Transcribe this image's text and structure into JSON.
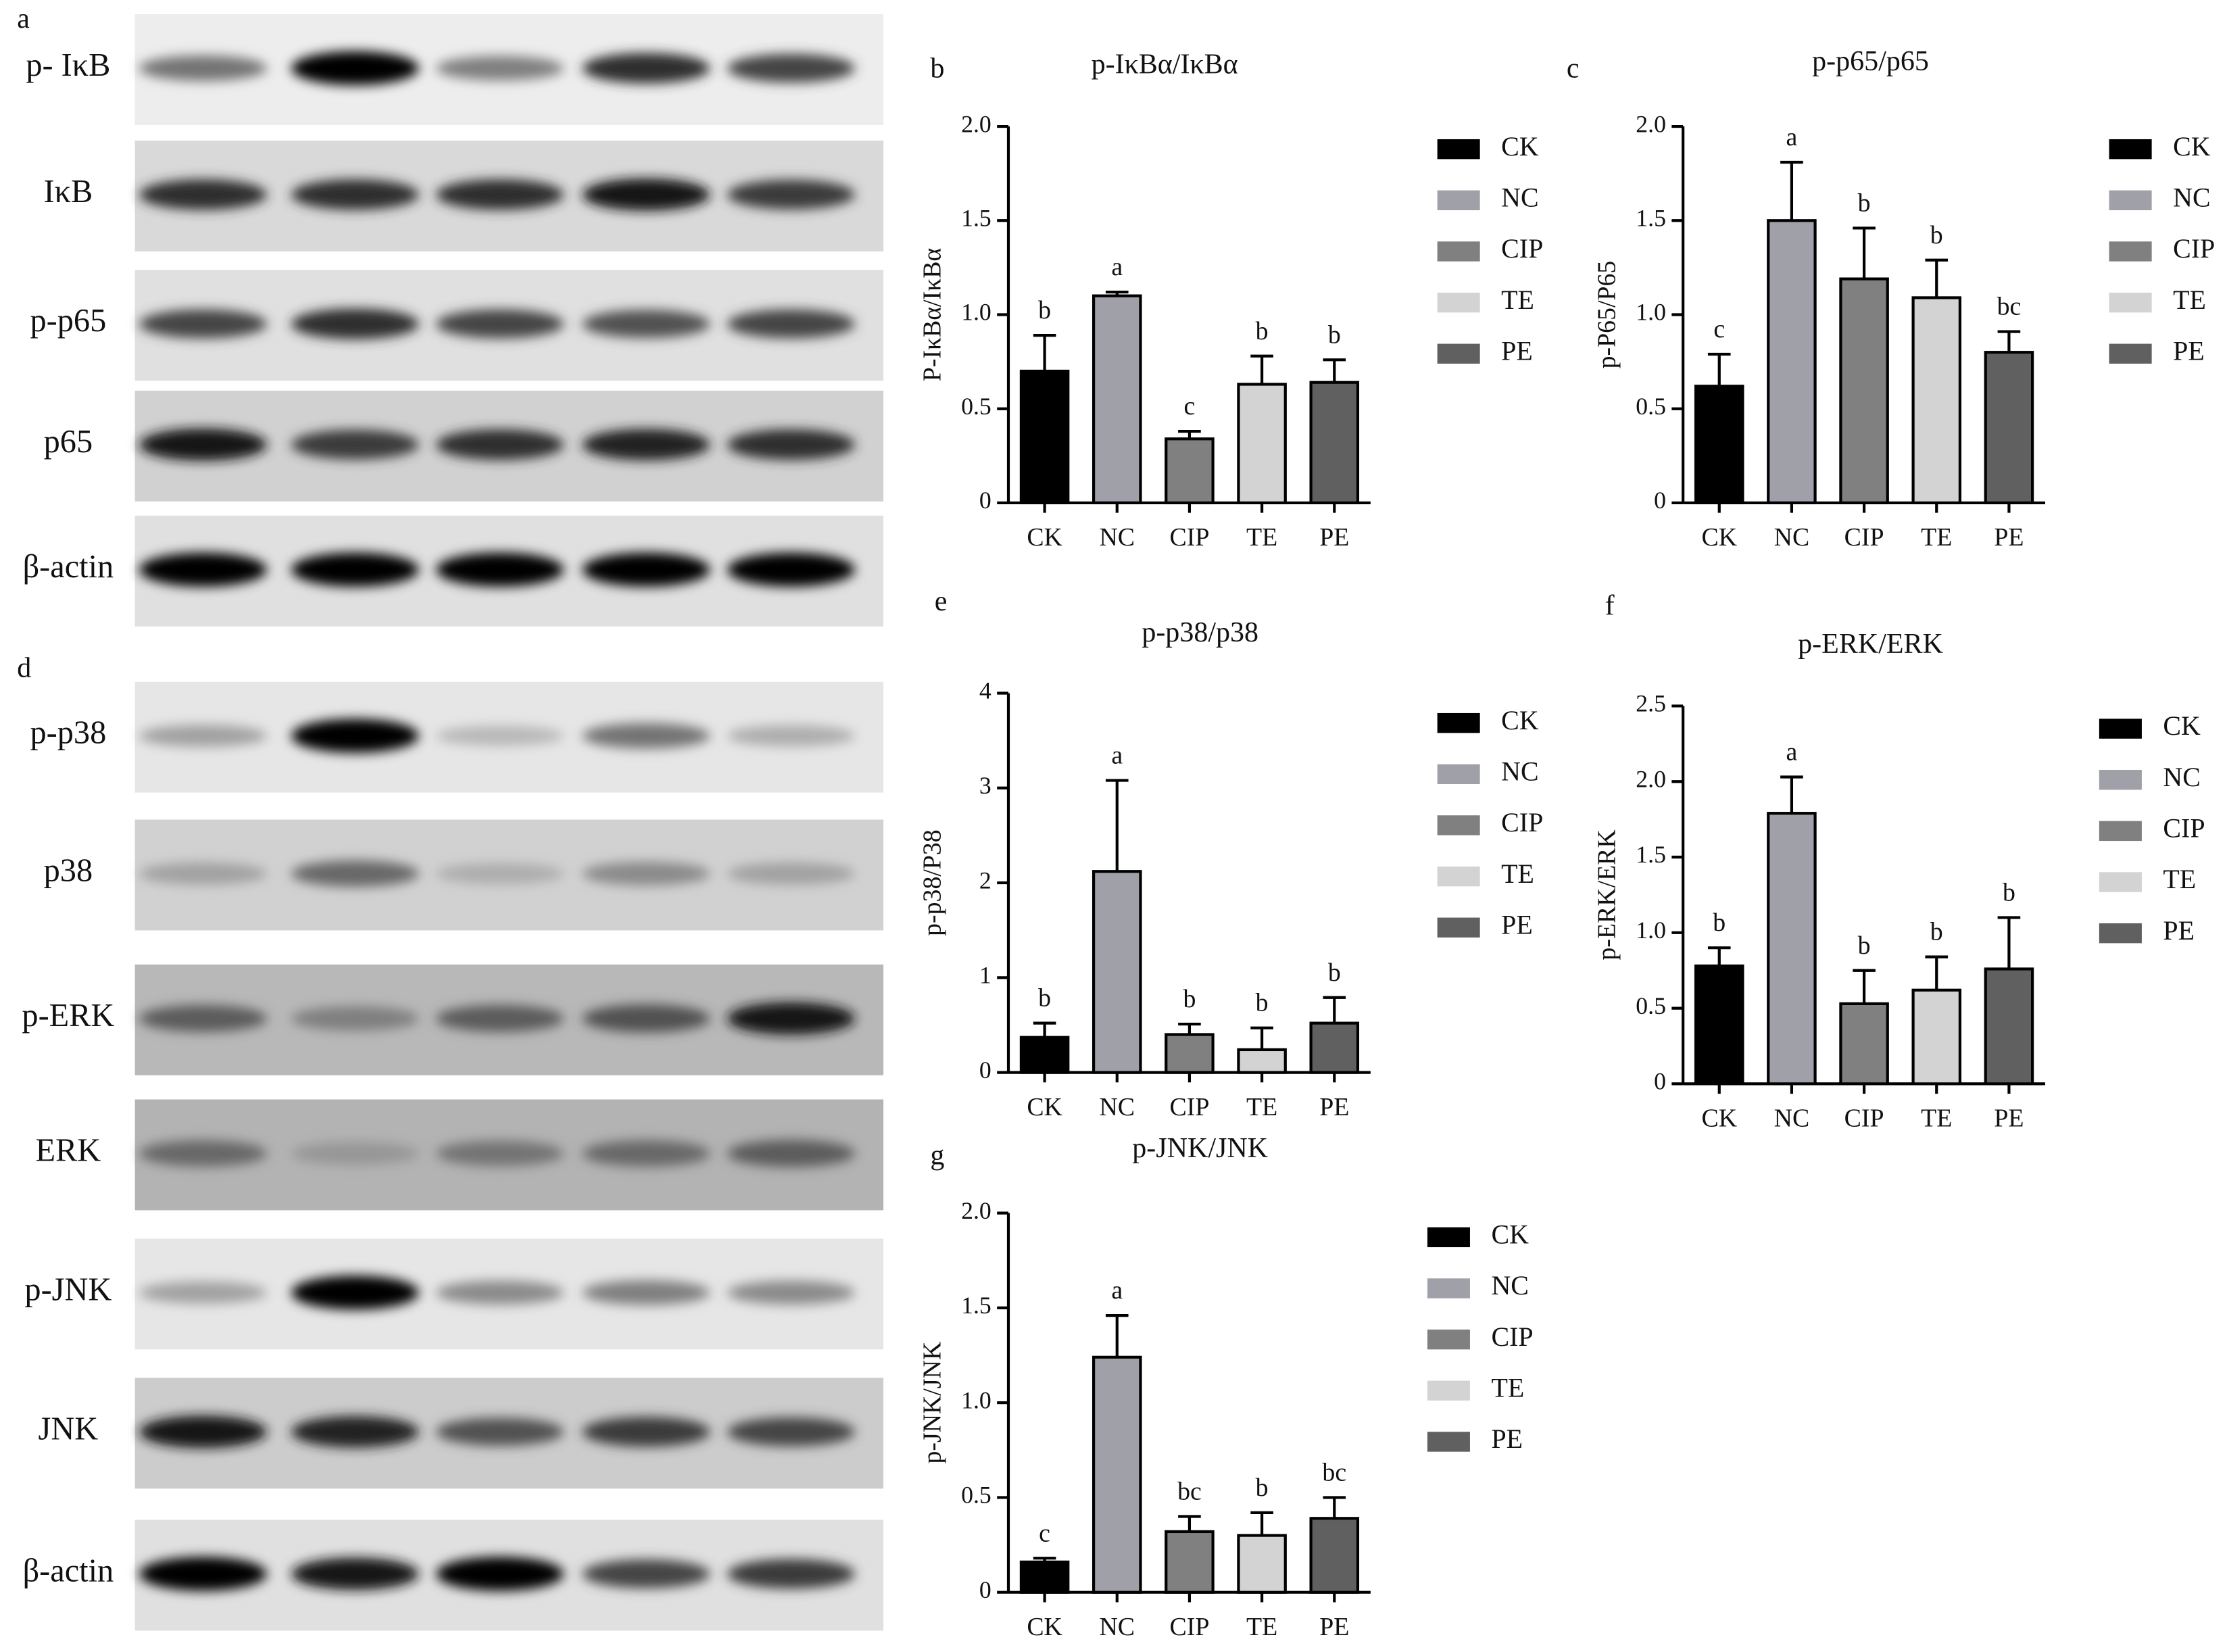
{
  "blots": [
    {
      "panel_label": "a",
      "rows": [
        "p- IκB",
        "IκB",
        "p-p65",
        "p65",
        "β-actin"
      ]
    },
    {
      "panel_label": "d",
      "rows": [
        "p-p38",
        "p38",
        "p-ERK",
        "ERK",
        "p-JNK",
        "JNK",
        "β-actin"
      ]
    }
  ],
  "chart_data": [
    {
      "type": "bar",
      "panel_label": "b",
      "title": "p-IκBα/IκBα",
      "ylabel": "P-IκBα/IκBα",
      "categories": [
        "CK",
        "NC",
        "CIP",
        "TE",
        "PE"
      ],
      "values": [
        0.7,
        1.1,
        0.34,
        0.63,
        0.64
      ],
      "errors": [
        0.19,
        0.02,
        0.04,
        0.15,
        0.12
      ],
      "annotations": [
        "b",
        "a",
        "c",
        "b",
        "b"
      ],
      "colors": [
        "#000000",
        "#a0a0a8",
        "#808080",
        "#d3d3d3",
        "#606060"
      ],
      "ylim": [
        0,
        2
      ],
      "yticks": [
        0,
        0.5,
        {
          "value": 1,
          "label": "1.0"
        },
        1.5,
        {
          "value": 2,
          "label": "2.0"
        }
      ],
      "legend": true
    },
    {
      "type": "bar",
      "panel_label": "c",
      "title": "p-p65/p65",
      "ylabel": "p-P65/P65",
      "categories": [
        "CK",
        "NC",
        "CIP",
        "TE",
        "PE"
      ],
      "values": [
        0.62,
        1.5,
        1.19,
        1.09,
        0.8
      ],
      "errors": [
        0.17,
        0.31,
        0.27,
        0.2,
        0.11
      ],
      "annotations": [
        "c",
        "a",
        "b",
        "b",
        "bc"
      ],
      "colors": [
        "#000000",
        "#a0a0a8",
        "#808080",
        "#d3d3d3",
        "#606060"
      ],
      "ylim": [
        0,
        2
      ],
      "yticks": [
        0,
        0.5,
        {
          "value": 1,
          "label": "1.0"
        },
        1.5,
        {
          "value": 2,
          "label": "2.0"
        }
      ],
      "legend": true
    },
    {
      "type": "bar",
      "panel_label": "e",
      "title": "p-p38/p38",
      "ylabel": "p-p38/P38",
      "categories": [
        "CK",
        "NC",
        "CIP",
        "TE",
        "PE"
      ],
      "values": [
        0.37,
        2.12,
        0.4,
        0.24,
        0.52
      ],
      "errors": [
        0.15,
        0.96,
        0.11,
        0.23,
        0.27
      ],
      "annotations": [
        "b",
        "a",
        "b",
        "b",
        "b"
      ],
      "colors": [
        "#000000",
        "#a0a0a8",
        "#808080",
        "#d3d3d3",
        "#606060"
      ],
      "ylim": [
        0,
        4
      ],
      "yticks": [
        0,
        1,
        2,
        3,
        4
      ],
      "legend": true
    },
    {
      "type": "bar",
      "panel_label": "f",
      "title": "p-ERK/ERK",
      "ylabel": "p-ERK/ERK",
      "categories": [
        "CK",
        "NC",
        "CIP",
        "TE",
        "PE"
      ],
      "values": [
        0.78,
        1.79,
        0.53,
        0.62,
        0.76
      ],
      "errors": [
        0.12,
        0.24,
        0.22,
        0.22,
        0.34
      ],
      "annotations": [
        "b",
        "a",
        "b",
        "b",
        "b"
      ],
      "colors": [
        "#000000",
        "#a0a0a8",
        "#808080",
        "#d3d3d3",
        "#606060"
      ],
      "ylim": [
        0,
        2.5
      ],
      "yticks": [
        0,
        0.5,
        {
          "value": 1,
          "label": "1.0"
        },
        1.5,
        {
          "value": 2,
          "label": "2.0"
        },
        2.5
      ],
      "legend": true
    },
    {
      "type": "bar",
      "panel_label": "g",
      "title": "p-JNK/JNK",
      "ylabel": "p-JNK/JNK",
      "categories": [
        "CK",
        "NC",
        "CIP",
        "TE",
        "PE"
      ],
      "values": [
        0.16,
        1.24,
        0.32,
        0.3,
        0.39
      ],
      "errors": [
        0.02,
        0.22,
        0.08,
        0.12,
        0.11
      ],
      "annotations": [
        "c",
        "a",
        "bc",
        "b",
        "bc"
      ],
      "colors": [
        "#000000",
        "#a0a0a8",
        "#808080",
        "#d3d3d3",
        "#606060"
      ],
      "ylim": [
        0,
        2
      ],
      "yticks": [
        0,
        0.5,
        {
          "value": 1,
          "label": "1.0"
        },
        1.5,
        {
          "value": 2,
          "label": "2.0"
        }
      ],
      "legend": true
    }
  ]
}
